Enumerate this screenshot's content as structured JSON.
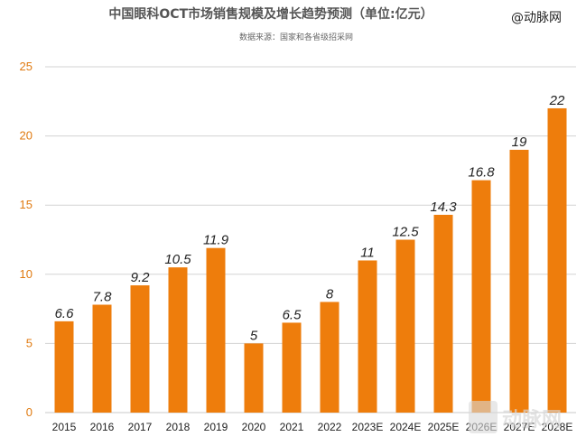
{
  "watermark_top": "@动脉网",
  "watermark_bottom": "动脉网",
  "colors": {
    "bar": "#ee7d0c",
    "ytick": "#e07a10",
    "grid": "#d3d3d3"
  },
  "chart_data": {
    "type": "bar",
    "title": "中国眼科OCT市场销售规模及增长趋势预测（单位:亿元）",
    "subtitle": "数据来源：国家和各省级招采网",
    "xlabel": "",
    "ylabel": "",
    "ylim": [
      0,
      25
    ],
    "yticks": [
      "0",
      "5",
      "10",
      "15",
      "20",
      "25"
    ],
    "grid": true,
    "legend": "none",
    "categories": [
      "2015",
      "2016",
      "2017",
      "2018",
      "2019",
      "2020",
      "2021",
      "2022",
      "2023E",
      "2024E",
      "2025E",
      "2026E",
      "2027E",
      "2028E"
    ],
    "values": [
      6.6,
      7.8,
      9.2,
      10.5,
      11.9,
      5,
      6.5,
      8,
      11,
      12.5,
      14.3,
      16.8,
      19,
      22
    ],
    "data_labels": [
      "6.6",
      "7.8",
      "9.2",
      "10.5",
      "11.9",
      "5",
      "6.5",
      "8",
      "11",
      "12.5",
      "14.3",
      "16.8",
      "19",
      "22"
    ]
  }
}
